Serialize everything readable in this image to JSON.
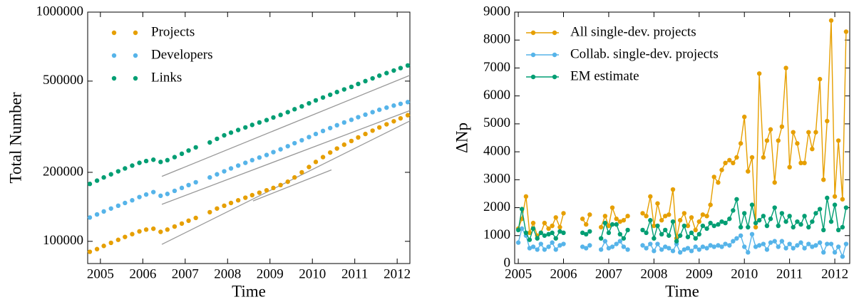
{
  "chart_data": [
    {
      "type": "scatter",
      "xlabel": "Time",
      "ylabel": "Total Number",
      "yscale": "log",
      "xlim": [
        2004.7,
        2012.3
      ],
      "ylim": [
        80000,
        1000000
      ],
      "xticks": [
        2005,
        2006,
        2007,
        2008,
        2009,
        2010,
        2011,
        2012
      ],
      "yticks": [
        100000,
        200000,
        500000,
        1000000
      ],
      "legend": "upper left",
      "x": [
        2004.75,
        2004.92,
        2005.08,
        2005.25,
        2005.42,
        2005.58,
        2005.75,
        2005.92,
        2006.08,
        2006.25,
        2006.42,
        2006.58,
        2006.75,
        2006.92,
        2007.08,
        2007.25,
        2007.42,
        2007.58,
        2007.75,
        2007.92,
        2008.08,
        2008.25,
        2008.42,
        2008.58,
        2008.75,
        2008.92,
        2009.08,
        2009.25,
        2009.42,
        2009.58,
        2009.75,
        2009.92,
        2010.08,
        2010.25,
        2010.42,
        2010.58,
        2010.75,
        2010.92,
        2011.08,
        2011.25,
        2011.42,
        2011.58,
        2011.75,
        2011.92,
        2012.08,
        2012.25
      ],
      "series": [
        {
          "name": "Projects",
          "color": "#E69F00",
          "values": [
            90000,
            92500,
            95500,
            98500,
            101500,
            104500,
            107500,
            110500,
            112500,
            113500,
            110000,
            112500,
            116000,
            119500,
            123000,
            126500,
            null,
            134000,
            139000,
            143000,
            147000,
            151000,
            155000,
            159000,
            163000,
            167000,
            171000,
            176000,
            182000,
            190000,
            200000,
            211000,
            222000,
            233000,
            244000,
            254000,
            264000,
            274000,
            284000,
            294000,
            304000,
            314000,
            324000,
            334000,
            344000,
            355000
          ]
        },
        {
          "name": "Developers",
          "color": "#56B4E9",
          "values": [
            127000,
            131000,
            135000,
            139000,
            143000,
            147000,
            151000,
            156000,
            160000,
            164000,
            158000,
            161000,
            166000,
            171000,
            176000,
            181000,
            null,
            190000,
            196000,
            202000,
            208000,
            214000,
            220000,
            226000,
            232000,
            238000,
            245000,
            252000,
            260000,
            268000,
            276000,
            285000,
            294000,
            303000,
            312000,
            321000,
            330000,
            339000,
            348000,
            357000,
            366000,
            375000,
            383000,
            391000,
            398000,
            405000
          ]
        },
        {
          "name": "Links",
          "color": "#009E73",
          "values": [
            178000,
            184000,
            190000,
            196000,
            202000,
            208000,
            214000,
            220000,
            224000,
            227000,
            222000,
            226000,
            233000,
            241000,
            249000,
            257000,
            null,
            270000,
            280000,
            290000,
            298000,
            306000,
            314000,
            322000,
            330000,
            338000,
            347000,
            356000,
            366000,
            377000,
            388000,
            400000,
            412000,
            424000,
            436000,
            448000,
            460000,
            472000,
            486000,
            500000,
            514000,
            528000,
            542000,
            556000,
            570000,
            585000
          ]
        }
      ],
      "trend_color": "#999999",
      "trend_lines": [
        {
          "x": [
            2006.45,
            2012.3
          ],
          "y": [
            97000,
            335000
          ]
        },
        {
          "x": [
            2008.6,
            2010.45
          ],
          "y": [
            150000,
            205000
          ]
        },
        {
          "x": [
            2006.45,
            2012.3
          ],
          "y": [
            145000,
            372000
          ]
        },
        {
          "x": [
            2006.45,
            2012.3
          ],
          "y": [
            192000,
            530000
          ]
        }
      ]
    },
    {
      "type": "line",
      "xlabel": "Time",
      "ylabel": "ΔNp",
      "xlim": [
        2004.92,
        2012.33
      ],
      "ylim": [
        0,
        9000
      ],
      "xticks": [
        2005,
        2006,
        2007,
        2008,
        2009,
        2010,
        2011,
        2012
      ],
      "yticks": [
        0,
        1000,
        2000,
        3000,
        4000,
        5000,
        6000,
        7000,
        8000,
        9000
      ],
      "legend": "upper left",
      "x": [
        2005,
        2005.08,
        2005.17,
        2005.25,
        2005.33,
        2005.42,
        2005.5,
        2005.58,
        2005.67,
        2005.75,
        2005.83,
        2005.92,
        2006,
        2006.08,
        2006.17,
        2006.25,
        2006.33,
        2006.42,
        2006.5,
        2006.58,
        2006.67,
        2006.75,
        2006.83,
        2006.92,
        2007,
        2007.08,
        2007.17,
        2007.25,
        2007.33,
        2007.42,
        2007.5,
        2007.58,
        2007.67,
        2007.75,
        2007.83,
        2007.92,
        2008,
        2008.08,
        2008.17,
        2008.25,
        2008.33,
        2008.42,
        2008.5,
        2008.58,
        2008.67,
        2008.75,
        2008.83,
        2008.92,
        2009,
        2009.08,
        2009.17,
        2009.25,
        2009.33,
        2009.42,
        2009.5,
        2009.58,
        2009.67,
        2009.75,
        2009.83,
        2009.92,
        2010,
        2010.08,
        2010.17,
        2010.25,
        2010.33,
        2010.42,
        2010.5,
        2010.58,
        2010.67,
        2010.75,
        2010.83,
        2010.92,
        2011,
        2011.08,
        2011.17,
        2011.25,
        2011.33,
        2011.42,
        2011.5,
        2011.58,
        2011.67,
        2011.75,
        2011.83,
        2011.92,
        2012,
        2012.08,
        2012.17,
        2012.25
      ],
      "series": [
        {
          "name": "All single-dev. projects",
          "color": "#E69F00",
          "values": [
            1250,
            1600,
            2400,
            1100,
            1450,
            1000,
            1100,
            1450,
            1250,
            1350,
            1650,
            1300,
            1800,
            null,
            null,
            null,
            null,
            1600,
            1400,
            1750,
            null,
            null,
            1300,
            1700,
            1350,
            2000,
            1600,
            1500,
            1550,
            1700,
            null,
            null,
            null,
            1800,
            1700,
            2400,
            1350,
            2150,
            1550,
            1700,
            1750,
            2650,
            900,
            1550,
            1800,
            1350,
            1650,
            1200,
            1500,
            1750,
            1700,
            2100,
            3100,
            2900,
            3350,
            3600,
            3700,
            3600,
            3800,
            4300,
            5250,
            3300,
            3800,
            1300,
            6800,
            3800,
            4400,
            4800,
            2900,
            4400,
            4900,
            7000,
            3450,
            4700,
            4300,
            3600,
            3600,
            4700,
            4100,
            4700,
            6600,
            3000,
            5100,
            8700,
            2400,
            4400,
            2300,
            8300
          ]
        },
        {
          "name": "Collab. single-dev. projects",
          "color": "#56B4E9",
          "values": [
            750,
            1250,
            1000,
            550,
            600,
            500,
            700,
            500,
            600,
            750,
            500,
            650,
            700,
            null,
            null,
            null,
            null,
            600,
            550,
            650,
            null,
            null,
            500,
            800,
            550,
            600,
            700,
            800,
            600,
            500,
            null,
            null,
            null,
            650,
            550,
            700,
            450,
            700,
            500,
            600,
            550,
            450,
            700,
            400,
            500,
            550,
            450,
            600,
            500,
            600,
            550,
            650,
            600,
            650,
            600,
            700,
            650,
            800,
            900,
            1000,
            600,
            400,
            1050,
            600,
            650,
            700,
            500,
            750,
            800,
            600,
            800,
            550,
            700,
            550,
            650,
            750,
            550,
            700,
            600,
            650,
            750,
            400,
            700,
            700,
            400,
            600,
            250,
            700
          ]
        },
        {
          "name": "EM estimate",
          "color": "#009E73",
          "values": [
            1200,
            1950,
            1100,
            850,
            1250,
            900,
            1100,
            1000,
            1050,
            1100,
            900,
            1150,
            1100,
            null,
            null,
            null,
            null,
            1100,
            1050,
            1150,
            null,
            null,
            900,
            1450,
            1100,
            1400,
            1400,
            1050,
            900,
            1200,
            null,
            null,
            null,
            1200,
            1100,
            1550,
            900,
            1350,
            1050,
            1200,
            1000,
            1500,
            800,
            1000,
            1350,
            950,
            1100,
            900,
            1050,
            1350,
            1250,
            1450,
            1350,
            1400,
            1500,
            1450,
            1600,
            1900,
            2300,
            1300,
            1800,
            1300,
            2100,
            1450,
            1550,
            1700,
            1350,
            1600,
            2000,
            1350,
            1800,
            1500,
            1700,
            1300,
            1500,
            1400,
            1700,
            1300,
            1500,
            1800,
            1950,
            1200,
            2350,
            1500,
            2100,
            1200,
            1300,
            2000
          ]
        }
      ]
    }
  ]
}
